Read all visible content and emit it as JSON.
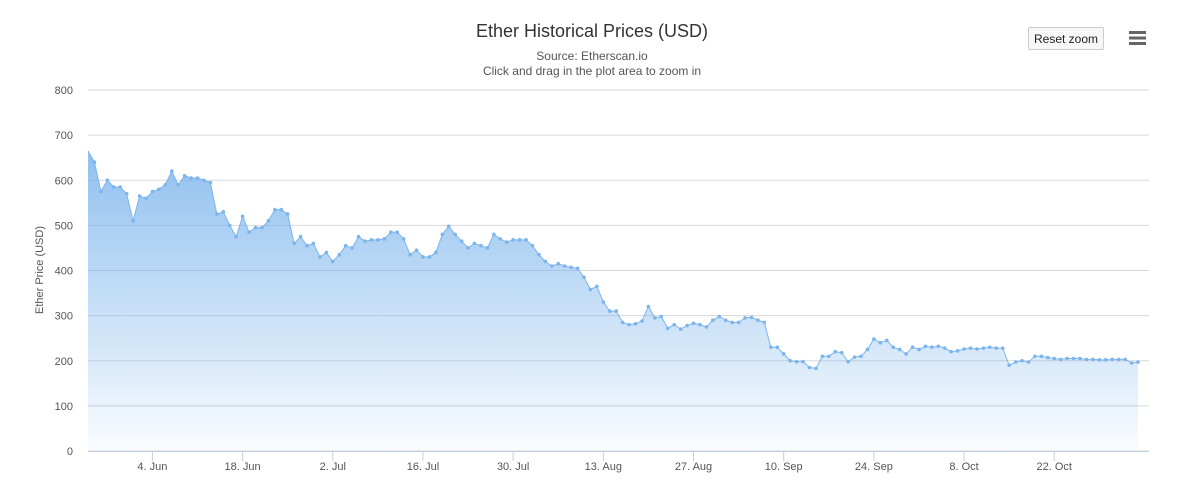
{
  "header": {
    "title": "Ether Historical Prices (USD)",
    "subtitle": "Source: Etherscan.io",
    "hint": "Click and drag in the plot area to zoom in",
    "reset_zoom_label": "Reset zoom",
    "menu_icon": "hamburger-menu-icon"
  },
  "chart_data": {
    "type": "area",
    "title": "Ether Historical Prices (USD)",
    "subtitle": "Source: Etherscan.io",
    "xlabel": "",
    "ylabel": "Ether Price (USD)",
    "ylim": [
      0,
      800
    ],
    "yticks": [
      0,
      100,
      200,
      300,
      400,
      500,
      600,
      700,
      800
    ],
    "xticks": [
      "4. Jun",
      "18. Jun",
      "2. Jul",
      "16. Jul",
      "30. Jul",
      "13. Aug",
      "27. Aug",
      "10. Sep",
      "24. Sep",
      "8. Oct",
      "22. Oct"
    ],
    "x_start": "2018-05-25",
    "grid": true,
    "color": "#7cb5ec",
    "series": [
      {
        "values": [
          665,
          640,
          575,
          600,
          585,
          585,
          570,
          510,
          565,
          560,
          575,
          580,
          590,
          620,
          590,
          610,
          605,
          605,
          600,
          595,
          525,
          530,
          500,
          475,
          520,
          485,
          495,
          495,
          510,
          535,
          535,
          525,
          460,
          475,
          455,
          460,
          430,
          440,
          420,
          435,
          455,
          450,
          475,
          465,
          468,
          468,
          470,
          485,
          485,
          470,
          435,
          445,
          430,
          430,
          440,
          480,
          498,
          480,
          465,
          450,
          460,
          455,
          450,
          480,
          470,
          463,
          468,
          468,
          468,
          455,
          435,
          420,
          410,
          415,
          410,
          407,
          405,
          385,
          358,
          365,
          330,
          310,
          310,
          285,
          280,
          282,
          288,
          320,
          295,
          298,
          272,
          280,
          270,
          278,
          283,
          280,
          275,
          290,
          298,
          290,
          285,
          285,
          295,
          296,
          290,
          285,
          230,
          230,
          215,
          200,
          198,
          198,
          185,
          183,
          210,
          210,
          220,
          218,
          198,
          208,
          210,
          225,
          248,
          240,
          245,
          230,
          225,
          215,
          230,
          225,
          232,
          230,
          232,
          228,
          220,
          222,
          226,
          228,
          226,
          228,
          230,
          228,
          228,
          190,
          197,
          200,
          197,
          210,
          210,
          207,
          205,
          203,
          205,
          205,
          205,
          203,
          203,
          202,
          202,
          203,
          203,
          203,
          195,
          197
        ]
      }
    ]
  }
}
